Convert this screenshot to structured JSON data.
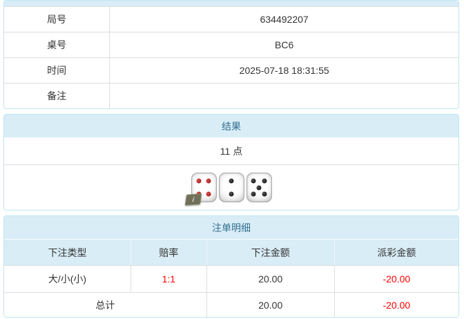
{
  "page": {
    "colors": {
      "accent_bg": "#d9edf7",
      "accent_border": "#bce8f1",
      "accent_text": "#31708f",
      "row_divider": "#dddddd",
      "body_text": "#333333",
      "negative_value": "#ff0000",
      "info_badge_bg": "#70705a",
      "die_pip_red": "#a01818",
      "die_pip_black": "#111111"
    }
  },
  "game_info": {
    "rows": [
      {
        "label": "局号",
        "value": "634492207"
      },
      {
        "label": "桌号",
        "value": "BC6"
      },
      {
        "label": "时间",
        "value": "2025-07-18 18:31:55"
      },
      {
        "label": "备注",
        "value": ""
      }
    ]
  },
  "result": {
    "title": "结果",
    "points": "11 点",
    "dice": [
      {
        "value": 4,
        "pip_color": "red"
      },
      {
        "value": 2,
        "pip_color": "black"
      },
      {
        "value": 5,
        "pip_color": "black"
      }
    ],
    "info_icon_glyph": "i"
  },
  "bets": {
    "title": "注单明细",
    "columns": [
      "下注类型",
      "赔率",
      "下注金额",
      "派彩金额"
    ],
    "rows": [
      {
        "type": "大/小(小)",
        "odds": "1:1",
        "amount": "20.00",
        "payout": "-20.00"
      }
    ],
    "total": {
      "label": "总计",
      "amount": "20.00",
      "payout": "-20.00"
    }
  }
}
